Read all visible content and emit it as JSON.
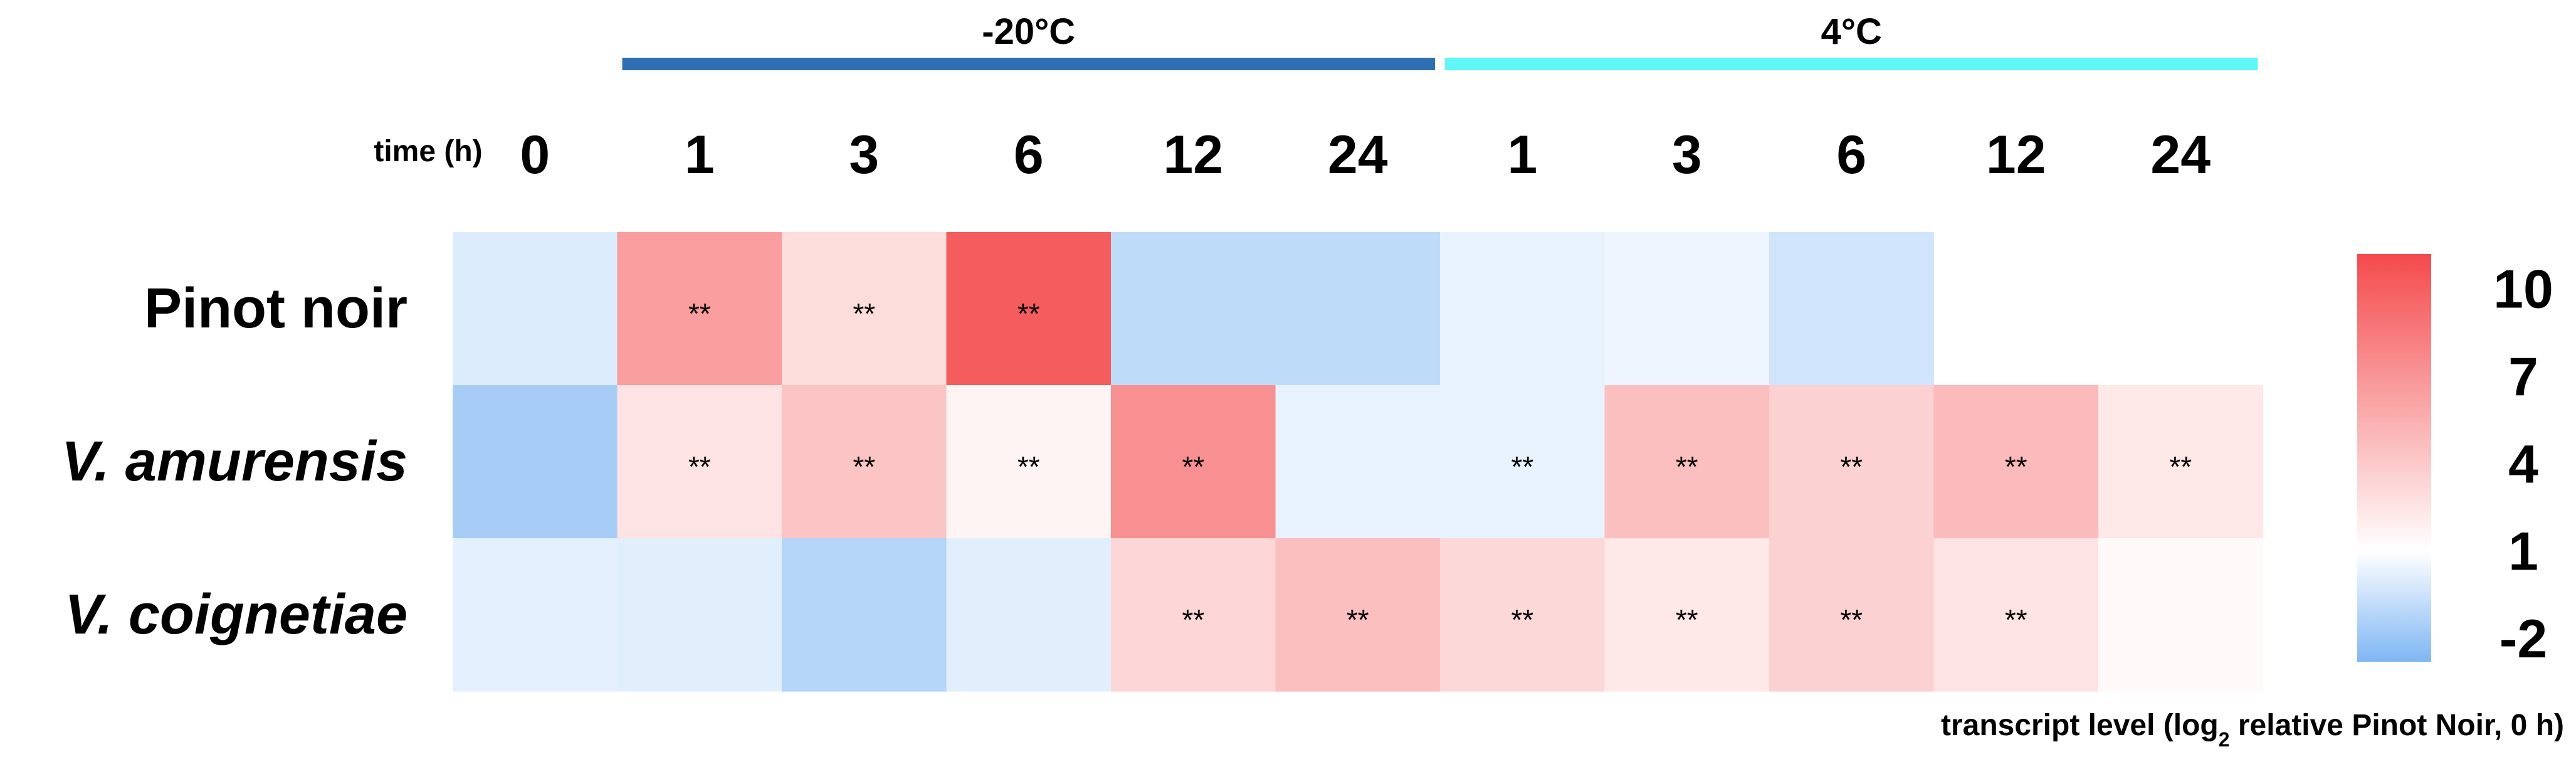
{
  "chart_data": {
    "type": "heatmap",
    "groups": [
      {
        "label": "-20°C",
        "color": "#2e6fb3"
      },
      {
        "label": "4°C",
        "color": "#5ff7f7"
      }
    ],
    "time_label": "time (h)",
    "columns": [
      "0",
      "1",
      "3",
      "6",
      "12",
      "24",
      "1",
      "3",
      "6",
      "12",
      "24"
    ],
    "column_group": [
      null,
      0,
      0,
      0,
      0,
      0,
      1,
      1,
      1,
      1,
      1
    ],
    "rows": [
      {
        "label": "Pinot noir",
        "italic": false
      },
      {
        "label": "V. amurensis",
        "italic": true
      },
      {
        "label": "V. coignetiae",
        "italic": true
      }
    ],
    "values": [
      [
        0,
        6.5,
        3.0,
        10.2,
        -0.9,
        -0.9,
        0.3,
        0.5,
        -0.4,
        null,
        null
      ],
      [
        -1.6,
        2.6,
        4.3,
        1.6,
        7.3,
        0.3,
        0.3,
        4.6,
        3.6,
        4.9,
        2.3
      ],
      [
        0.2,
        0.1,
        -1.2,
        0.1,
        3.3,
        4.6,
        3.2,
        2.3,
        3.6,
        2.6,
        1.3
      ]
    ],
    "significance": [
      [
        "",
        "**",
        "**",
        "**",
        "",
        "",
        "",
        "",
        "",
        "",
        ""
      ],
      [
        "",
        "**",
        "**",
        "**",
        "**",
        "",
        "**",
        "**",
        "**",
        "**",
        "**"
      ],
      [
        "",
        "",
        "",
        "",
        "**",
        "**",
        "**",
        "**",
        "**",
        "**",
        ""
      ]
    ],
    "colorbar": {
      "min": -2.8,
      "max": 11.2,
      "ticks": [
        "10",
        "7",
        "4",
        "1",
        "-2"
      ],
      "low_color": "#7fb6f4",
      "mid_color": "#ffffff",
      "high_color": "#f44a4c",
      "mid_value": 1
    },
    "value_label_prefix": "transcript level (log",
    "value_label_sub": "2",
    "value_label_suffix": " relative Pinot Noir, 0 h)"
  }
}
